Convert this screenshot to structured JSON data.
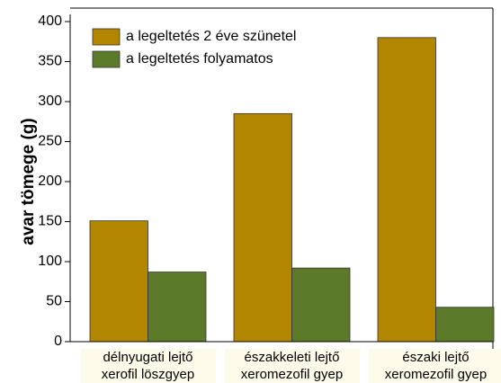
{
  "chart_data": {
    "type": "bar",
    "y_label": "avar tömege (g)",
    "categories": [
      "délnyugati lejtő\nxerofil löszgyep",
      "északkeleti lejtő\nxeromezofil gyep",
      "északi lejtő\nxeromezofil gyep"
    ],
    "series": [
      {
        "name": "a legeltetés 2 éve szünetel",
        "color": "#b38600",
        "values": [
          151,
          285,
          380
        ]
      },
      {
        "name": "a legeltetés folyamatos",
        "color": "#5b7a2a",
        "values": [
          87,
          92,
          43
        ]
      }
    ],
    "ylim": [
      0,
      400
    ],
    "yticks": [
      0,
      50,
      100,
      150,
      200,
      250,
      300,
      350,
      400
    ],
    "legend": "upper-left"
  }
}
